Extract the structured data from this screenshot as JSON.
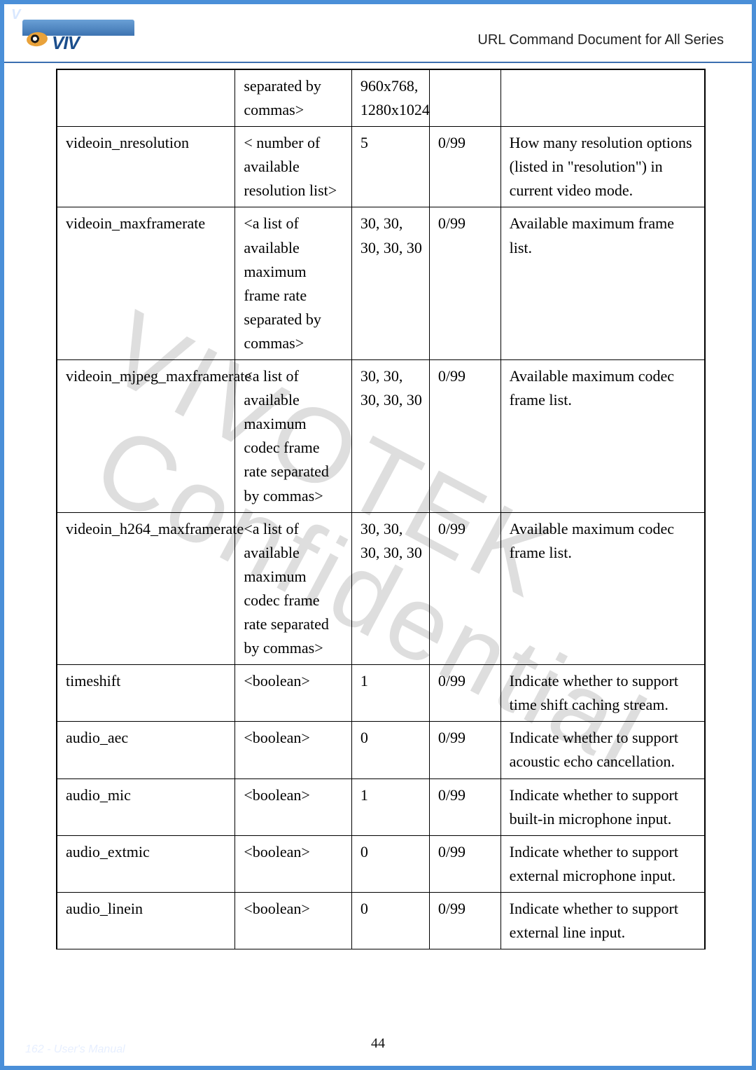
{
  "header": {
    "logo_text": "VIV",
    "title": "URL Command Document for All Series"
  },
  "watermark": {
    "line1": "VIVOTEK",
    "line2": "Confidential"
  },
  "footer": {
    "left": "162 - User's Manual",
    "center_page": "44"
  },
  "corner_badge": "V",
  "table": {
    "col_widths_pct": [
      27.5,
      18,
      12,
      11,
      31.5
    ],
    "rows": [
      {
        "c1": "",
        "c2": "separated by commas>",
        "c3": "960x768, 1280x1024",
        "c4": "",
        "c5": ""
      },
      {
        "c1": "videoin_nresolution",
        "c2": "< number of available resolution list>",
        "c3": "5",
        "c4": "0/99",
        "c5": "How many resolution options (listed in \"resolution\") in current video mode."
      },
      {
        "c1": "videoin_maxframerate",
        "c2": "<a list of available maximum frame rate separated by commas>",
        "c3": "30, 30, 30, 30, 30",
        "c4": "0/99",
        "c5": "Available maximum frame list."
      },
      {
        "c1": "videoin_mjpeg_maxframerate",
        "c2": "<a list of available maximum codec frame rate separated by commas>",
        "c3": "30, 30, 30, 30, 30",
        "c4": "0/99",
        "c5": "Available maximum codec frame list."
      },
      {
        "c1": "videoin_h264_maxframerate",
        "c2": "<a list of available maximum codec frame rate separated by commas>",
        "c3": "30, 30, 30, 30, 30",
        "c4": "0/99",
        "c5": "Available maximum codec frame list."
      },
      {
        "c1": "timeshift",
        "c2": "<boolean>",
        "c3": "1",
        "c4": "0/99",
        "c5": "Indicate whether to support time shift caching stream."
      },
      {
        "c1": "audio_aec",
        "c2": "<boolean>",
        "c3": "0",
        "c4": "0/99",
        "c5": "Indicate whether to support acoustic echo cancellation."
      },
      {
        "c1": "audio_mic",
        "c2": "<boolean>",
        "c3": "1",
        "c4": "0/99",
        "c5": "Indicate whether to support built-in microphone input."
      },
      {
        "c1": "audio_extmic",
        "c2": "<boolean>",
        "c3": "0",
        "c4": "0/99",
        "c5": "Indicate whether to support external microphone input."
      },
      {
        "c1": "audio_linein",
        "c2": "<boolean>",
        "c3": "0",
        "c4": "0/99",
        "c5": "Indicate whether to support external line input."
      }
    ]
  }
}
